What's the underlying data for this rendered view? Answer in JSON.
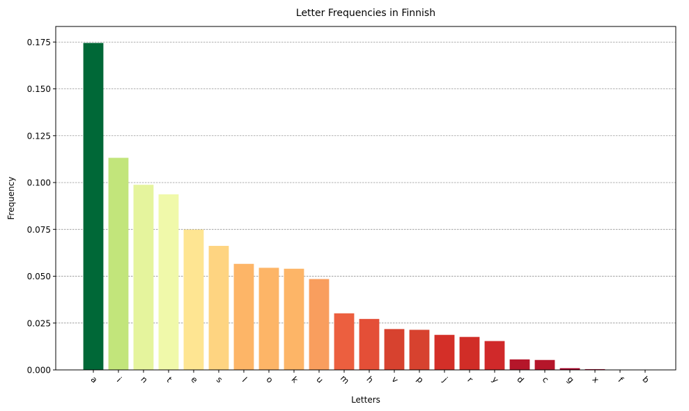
{
  "chart_data": {
    "type": "bar",
    "title": "Letter Frequencies in Finnish",
    "xlabel": "Letters",
    "ylabel": "Frequency",
    "categories": [
      "a",
      "i",
      "n",
      "t",
      "e",
      "s",
      "l",
      "o",
      "k",
      "u",
      "m",
      "h",
      "v",
      "p",
      "j",
      "r",
      "y",
      "d",
      "c",
      "g",
      "x",
      "f",
      "b"
    ],
    "values": [
      0.1745,
      0.1132,
      0.0988,
      0.0937,
      0.0749,
      0.0662,
      0.0566,
      0.0545,
      0.054,
      0.0485,
      0.0302,
      0.0272,
      0.0218,
      0.0214,
      0.0187,
      0.0176,
      0.0154,
      0.0056,
      0.0053,
      0.0009,
      0.0004,
      0.0001,
      0.0001
    ],
    "colors": [
      "#006837",
      "#c2e57b",
      "#e5f49d",
      "#f0f9aa",
      "#fee592",
      "#fed481",
      "#fdb567",
      "#fdb567",
      "#fdb567",
      "#f99e5e",
      "#ec5f3f",
      "#e44f37",
      "#d7422f",
      "#d7422f",
      "#d42f28",
      "#d12d27",
      "#d0292a",
      "#b5162a",
      "#b5162a",
      "#a50026",
      "#a50026",
      "#a50026",
      "#a50026"
    ],
    "ylim": [
      0,
      0.1833
    ],
    "yticks": [
      "0.000",
      "0.025",
      "0.050",
      "0.075",
      "0.100",
      "0.125",
      "0.150",
      "0.175"
    ],
    "ytick_values": [
      0,
      0.025,
      0.05,
      0.075,
      0.1,
      0.125,
      0.15,
      0.175
    ],
    "grid": "y-dashed",
    "xtick_rotation": 45
  }
}
